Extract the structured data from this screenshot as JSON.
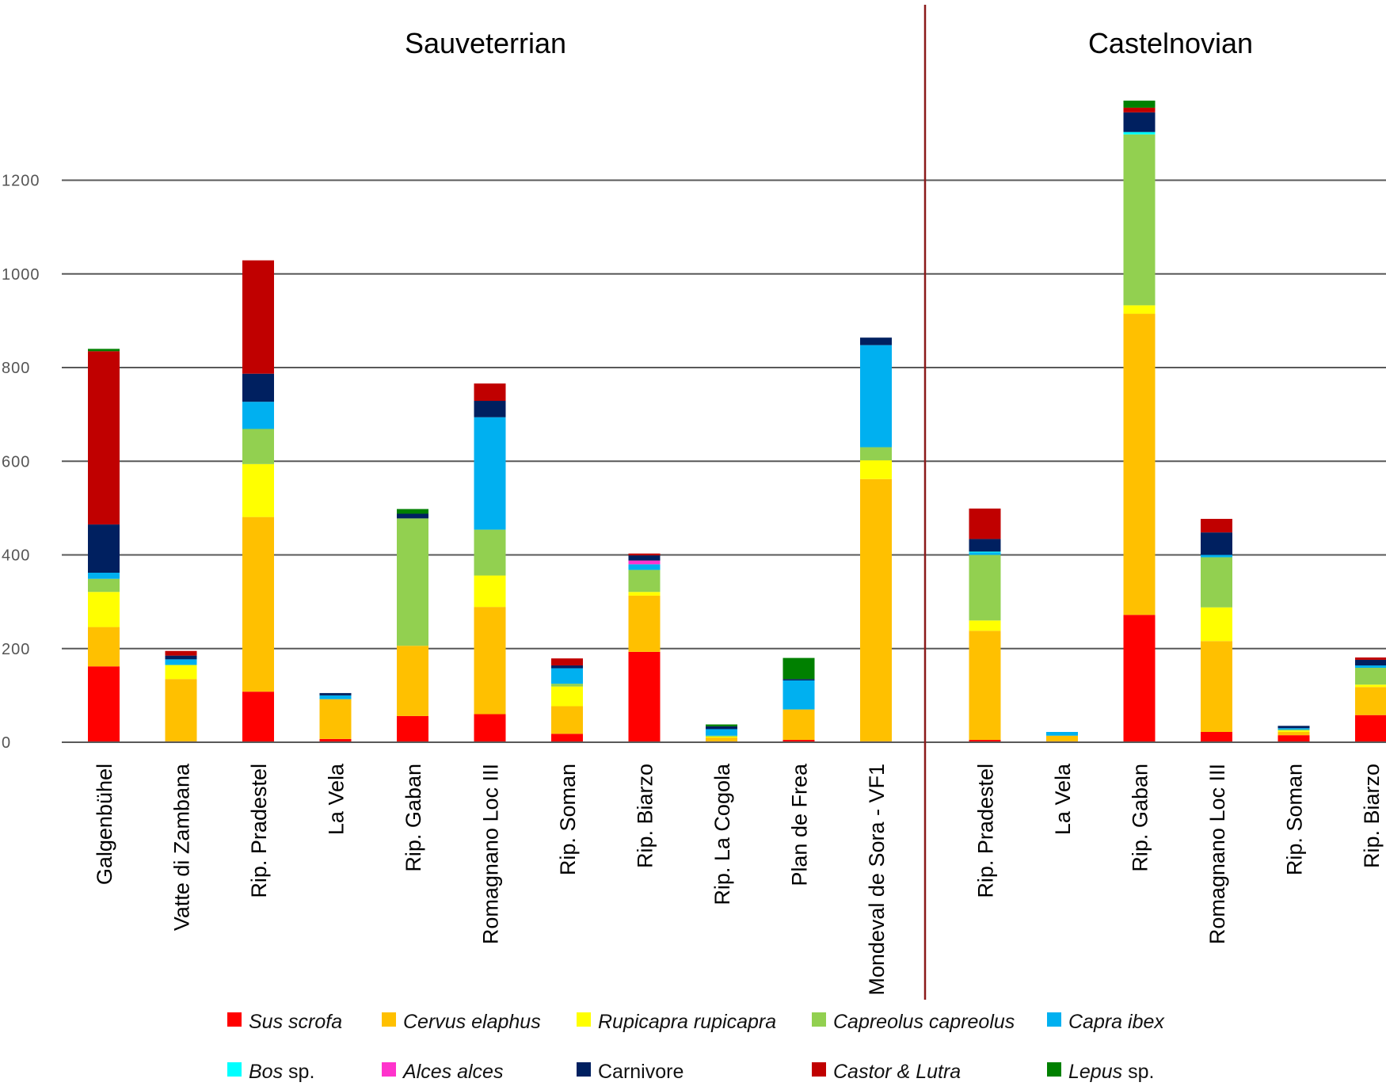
{
  "chart_data": {
    "type": "bar",
    "stacked": true,
    "title": "",
    "xlabel": "",
    "ylabel": "",
    "ylim": [
      0,
      1400
    ],
    "yticks": [
      0,
      200,
      400,
      600,
      800,
      1000,
      1200
    ],
    "grid": true,
    "legend_position": "bottom",
    "groups": [
      {
        "label": "Sauveterrian",
        "categories": [
          "Galgenbühel",
          "Vatte di Zambana",
          "Rip. Pradestel",
          "La Vela",
          "Rip. Gaban",
          "Romagnano Loc III",
          "Rip. Soman",
          "Rip. Biarzo",
          "Rip. La Cogola",
          "Plan de Frea",
          "Mondeval de Sora - VF1"
        ]
      },
      {
        "label": "Castelnovian",
        "categories": [
          "Rip. Pradestel",
          "La Vela",
          "Rip. Gaban",
          "Romagnano Loc III",
          "Rip. Soman",
          "Rip. Biarzo"
        ]
      }
    ],
    "categories": [
      "Galgenbühel",
      "Vatte di Zambana",
      "Rip. Pradestel",
      "La Vela",
      "Rip. Gaban",
      "Romagnano Loc III",
      "Rip. Soman",
      "Rip. Biarzo",
      "Rip. La Cogola",
      "Plan de Frea",
      "Mondeval de Sora - VF1",
      "Rip. Pradestel",
      "La Vela",
      "Rip. Gaban",
      "Romagnano Loc III",
      "Rip. Soman",
      "Rip. Biarzo"
    ],
    "series": [
      {
        "name": "Sus scrofa",
        "name_main": "Sus scrofa",
        "name_suffix": "",
        "color": "#ff0000",
        "values": [
          162,
          2,
          108,
          7,
          56,
          60,
          18,
          193,
          2,
          5,
          2,
          5,
          2,
          272,
          22,
          15,
          58
        ]
      },
      {
        "name": "Cervus elaphus",
        "name_main": "Cervus elaphus",
        "name_suffix": "",
        "color": "#ffc000",
        "values": [
          84,
          133,
          373,
          85,
          150,
          229,
          59,
          120,
          8,
          65,
          560,
          233,
          12,
          643,
          194,
          7,
          60
        ]
      },
      {
        "name": "Rupicapra rupicapra",
        "name_main": "Rupicapra rupicapra",
        "name_suffix": "",
        "color": "#ffff00",
        "values": [
          75,
          30,
          113,
          0,
          0,
          67,
          42,
          8,
          2,
          0,
          40,
          22,
          0,
          18,
          72,
          3,
          5
        ]
      },
      {
        "name": "Capreolus capreolus",
        "name_main": "Capreolus capreolus",
        "name_suffix": "",
        "color": "#92d050",
        "values": [
          28,
          0,
          75,
          0,
          272,
          98,
          6,
          47,
          2,
          0,
          28,
          140,
          0,
          365,
          107,
          2,
          36
        ]
      },
      {
        "name": "Capra ibex",
        "name_main": "Capra ibex",
        "name_suffix": "",
        "color": "#00b0f0",
        "values": [
          13,
          12,
          58,
          8,
          0,
          240,
          33,
          12,
          14,
          62,
          218,
          5,
          8,
          0,
          5,
          3,
          5
        ]
      },
      {
        "name": "Bos sp.",
        "name_main": "Bos",
        "name_suffix": " sp.",
        "color": "#00ffff",
        "values": [
          0,
          0,
          0,
          0,
          0,
          0,
          0,
          0,
          0,
          0,
          0,
          2,
          0,
          5,
          0,
          0,
          0
        ]
      },
      {
        "name": "Alces alces",
        "name_main": "Alces alces",
        "name_suffix": "",
        "color": "#ff33cc",
        "values": [
          0,
          0,
          0,
          0,
          0,
          0,
          0,
          8,
          0,
          0,
          0,
          0,
          0,
          0,
          0,
          0,
          0
        ]
      },
      {
        "name": "Carnivore",
        "name_main": "Carnivore",
        "name_suffix": "",
        "color": "#002060",
        "values": [
          103,
          8,
          60,
          5,
          10,
          35,
          6,
          11,
          6,
          3,
          16,
          27,
          0,
          42,
          48,
          5,
          12
        ]
      },
      {
        "name": "Castor & Lutra",
        "name_main": "Castor & Lutra",
        "name_suffix": "",
        "color": "#c00000",
        "values": [
          370,
          10,
          242,
          0,
          0,
          37,
          15,
          4,
          0,
          0,
          0,
          65,
          0,
          10,
          29,
          0,
          5
        ]
      },
      {
        "name": "Lepus sp.",
        "name_main": "Lepus",
        "name_suffix": " sp.",
        "color": "#008000",
        "values": [
          5,
          0,
          0,
          0,
          10,
          0,
          0,
          0,
          4,
          45,
          0,
          0,
          0,
          15,
          0,
          0,
          0
        ]
      }
    ]
  }
}
